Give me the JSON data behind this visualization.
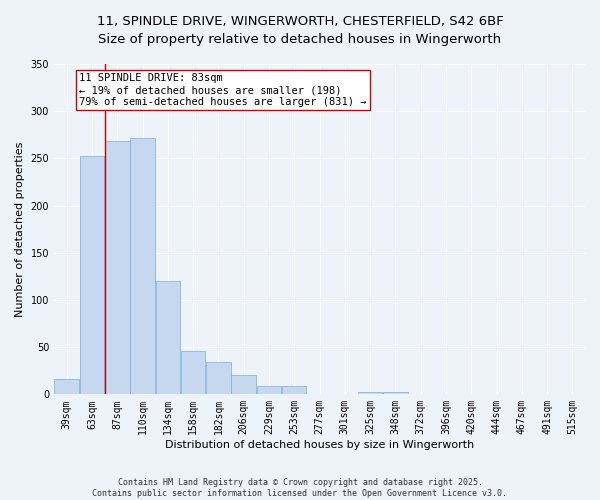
{
  "title_line1": "11, SPINDLE DRIVE, WINGERWORTH, CHESTERFIELD, S42 6BF",
  "title_line2": "Size of property relative to detached houses in Wingerworth",
  "xlabel": "Distribution of detached houses by size in Wingerworth",
  "ylabel": "Number of detached properties",
  "bar_labels": [
    "39sqm",
    "63sqm",
    "87sqm",
    "110sqm",
    "134sqm",
    "158sqm",
    "182sqm",
    "206sqm",
    "229sqm",
    "253sqm",
    "277sqm",
    "301sqm",
    "325sqm",
    "348sqm",
    "372sqm",
    "396sqm",
    "420sqm",
    "444sqm",
    "467sqm",
    "491sqm",
    "515sqm"
  ],
  "bar_values": [
    16,
    253,
    268,
    272,
    120,
    46,
    34,
    21,
    9,
    9,
    0,
    0,
    3,
    3,
    0,
    0,
    0,
    0,
    0,
    0,
    0
  ],
  "bar_color": "#c5d8f0",
  "bar_edge_color": "#7aaed6",
  "vline_x": 1.5,
  "vline_color": "#cc0000",
  "annotation_text": "11 SPINDLE DRIVE: 83sqm\n← 19% of detached houses are smaller (198)\n79% of semi-detached houses are larger (831) →",
  "annotation_box_color": "#ffffff",
  "annotation_box_edge": "#cc0000",
  "ylim": [
    0,
    350
  ],
  "yticks": [
    0,
    50,
    100,
    150,
    200,
    250,
    300,
    350
  ],
  "footer_line1": "Contains HM Land Registry data © Crown copyright and database right 2025.",
  "footer_line2": "Contains public sector information licensed under the Open Government Licence v3.0.",
  "bg_color": "#eef2f9",
  "plot_bg_color": "#eef2f9",
  "grid_color": "#ffffff",
  "title_fontsize": 9.5,
  "axis_label_fontsize": 8,
  "tick_fontsize": 7,
  "footer_fontsize": 6,
  "annot_fontsize": 7.5
}
